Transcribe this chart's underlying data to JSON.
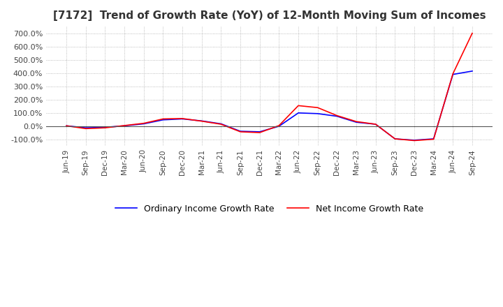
{
  "title": "[7172]  Trend of Growth Rate (YoY) of 12-Month Moving Sum of Incomes",
  "title_fontsize": 11,
  "ylim": [
    -150,
    750
  ],
  "yticks": [
    -100,
    0,
    100,
    200,
    300,
    400,
    500,
    600,
    700
  ],
  "background_color": "#ffffff",
  "grid_color": "#aaaaaa",
  "legend_labels": [
    "Ordinary Income Growth Rate",
    "Net Income Growth Rate"
  ],
  "line_colors": [
    "#0000ff",
    "#ff0000"
  ],
  "x_labels": [
    "Jun-19",
    "Sep-19",
    "Dec-19",
    "Mar-20",
    "Jun-20",
    "Sep-20",
    "Dec-20",
    "Mar-21",
    "Jun-21",
    "Sep-21",
    "Dec-21",
    "Mar-22",
    "Jun-22",
    "Sep-22",
    "Dec-22",
    "Mar-23",
    "Jun-23",
    "Sep-23",
    "Dec-23",
    "Mar-24",
    "Jun-24",
    "Sep-24"
  ],
  "ordinary_income": [
    3,
    -12,
    -8,
    3,
    18,
    48,
    55,
    40,
    18,
    -38,
    -42,
    0,
    100,
    95,
    75,
    30,
    15,
    -95,
    -105,
    -95,
    390,
    415
  ],
  "net_income": [
    3,
    -18,
    -12,
    5,
    22,
    55,
    58,
    38,
    15,
    -42,
    -48,
    5,
    155,
    140,
    80,
    35,
    15,
    -95,
    -108,
    -98,
    395,
    700
  ]
}
